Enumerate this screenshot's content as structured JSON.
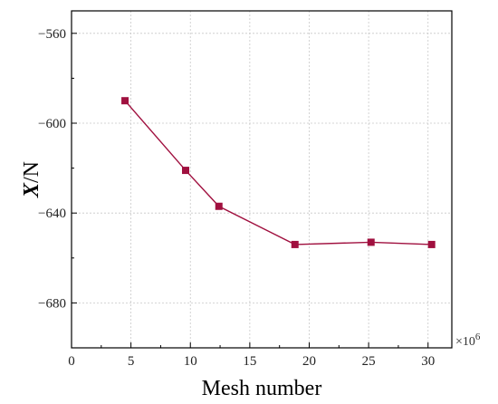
{
  "chart_data": {
    "type": "line",
    "xlabel": "Mesh number",
    "ylabel_main": "X",
    "ylabel_unit": "/N",
    "x_multiplier": "×10",
    "x_multiplier_exp": "6",
    "xlim": [
      0,
      32
    ],
    "ylim": [
      -700,
      -550
    ],
    "x_ticks": [
      0,
      5,
      10,
      15,
      20,
      25,
      30
    ],
    "x_tick_labels": [
      "0",
      "5",
      "10",
      "15",
      "20",
      "25",
      "30"
    ],
    "y_ticks": [
      -680,
      -640,
      -600,
      -560
    ],
    "y_tick_labels": [
      "−680",
      "−640",
      "−600",
      "−560"
    ],
    "grid": true,
    "line_color": "#a0103f",
    "series": [
      {
        "x": [
          4.5,
          9.6,
          12.4,
          18.8,
          25.2,
          30.3
        ],
        "y": [
          -590,
          -621,
          -637,
          -654,
          -653,
          -654
        ]
      }
    ]
  }
}
